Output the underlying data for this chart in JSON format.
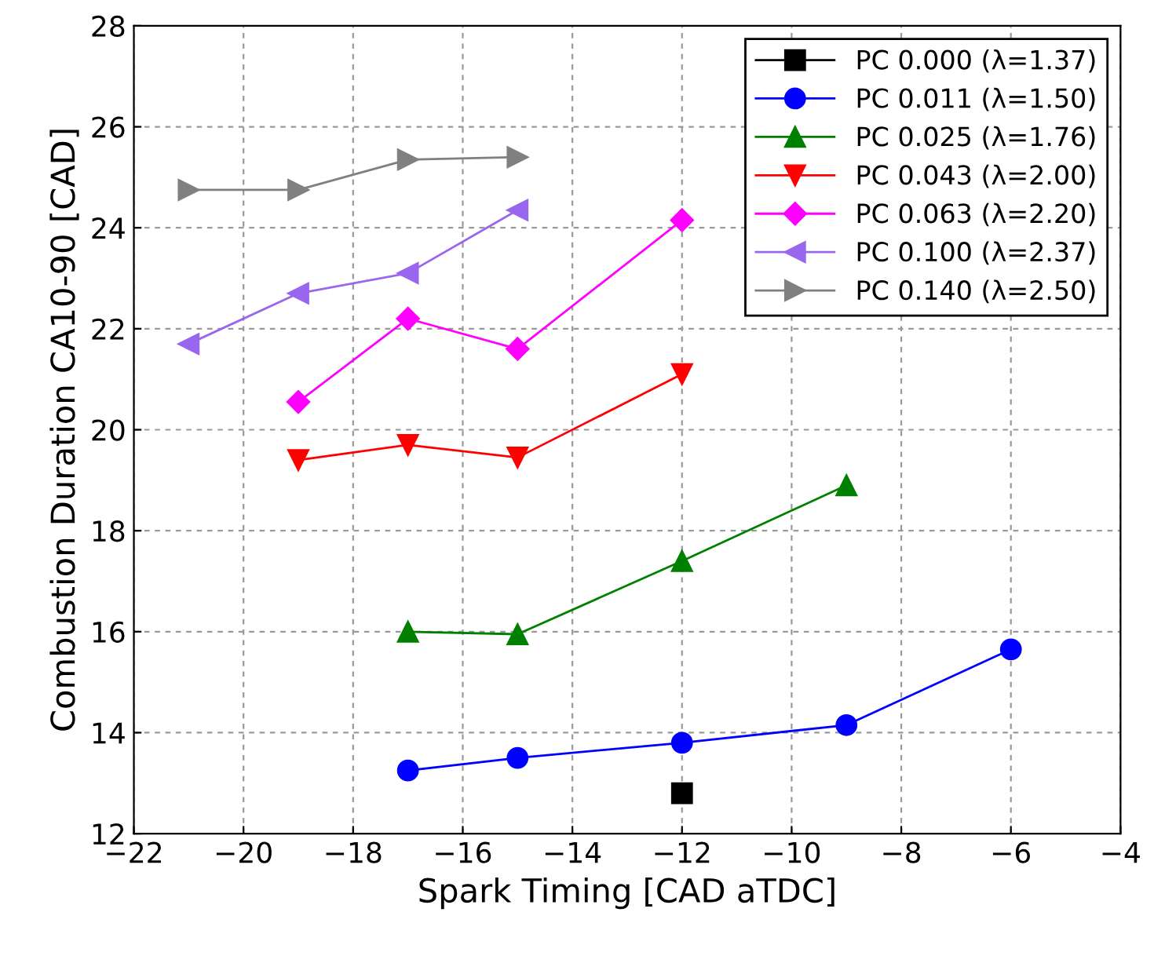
{
  "chart_data": {
    "type": "line",
    "xlabel": "Spark Timing [CAD aTDC]",
    "ylabel": "Combustion Duration CA10-90 [CAD]",
    "xlim": [
      -22,
      -4
    ],
    "xticks": [
      -22,
      -20,
      -18,
      -16,
      -14,
      -12,
      -10,
      -8,
      -6,
      -4
    ],
    "ylim": [
      12,
      28
    ],
    "yticks": [
      12,
      14,
      16,
      18,
      20,
      22,
      24,
      26,
      28
    ],
    "grid": true,
    "legend": "top right",
    "line_style": "solid",
    "series": [
      {
        "name": "PC 0.000 (λ=1.37)",
        "color": "#000000",
        "marker": "square",
        "x": [
          -12
        ],
        "values": [
          12.8
        ]
      },
      {
        "name": "PC 0.011 (λ=1.50)",
        "color": "#0000ff",
        "marker": "circle",
        "x": [
          -17,
          -15,
          -12,
          -9,
          -6
        ],
        "values": [
          13.25,
          13.5,
          13.8,
          14.15,
          15.65
        ]
      },
      {
        "name": "PC 0.025 (λ=1.76)",
        "color": "#008000",
        "marker": "triangle",
        "x": [
          -17,
          -15,
          -12,
          -9
        ],
        "values": [
          16.0,
          15.95,
          17.4,
          18.9
        ]
      },
      {
        "name": "PC 0.043 (λ=2.00)",
        "color": "#ff0000",
        "marker": "triangle-down",
        "x": [
          -19,
          -17,
          -15,
          -12
        ],
        "values": [
          19.4,
          19.7,
          19.45,
          21.1
        ]
      },
      {
        "name": "PC 0.063 (λ=2.20)",
        "color": "#ff00ff",
        "marker": "diamond",
        "x": [
          -19,
          -17,
          -15,
          -12
        ],
        "values": [
          20.55,
          22.2,
          21.6,
          24.15
        ]
      },
      {
        "name": "PC 0.100 (λ=2.37)",
        "color": "#9966ee",
        "marker": "triangle-left",
        "x": [
          -21,
          -19,
          -17,
          -15
        ],
        "values": [
          21.7,
          22.7,
          23.1,
          24.35
        ]
      },
      {
        "name": "PC 0.140 (λ=2.50)",
        "color": "#808080",
        "marker": "triangle-right",
        "x": [
          -21,
          -19,
          -17,
          -15
        ],
        "values": [
          24.75,
          24.75,
          25.35,
          25.4
        ]
      }
    ]
  }
}
